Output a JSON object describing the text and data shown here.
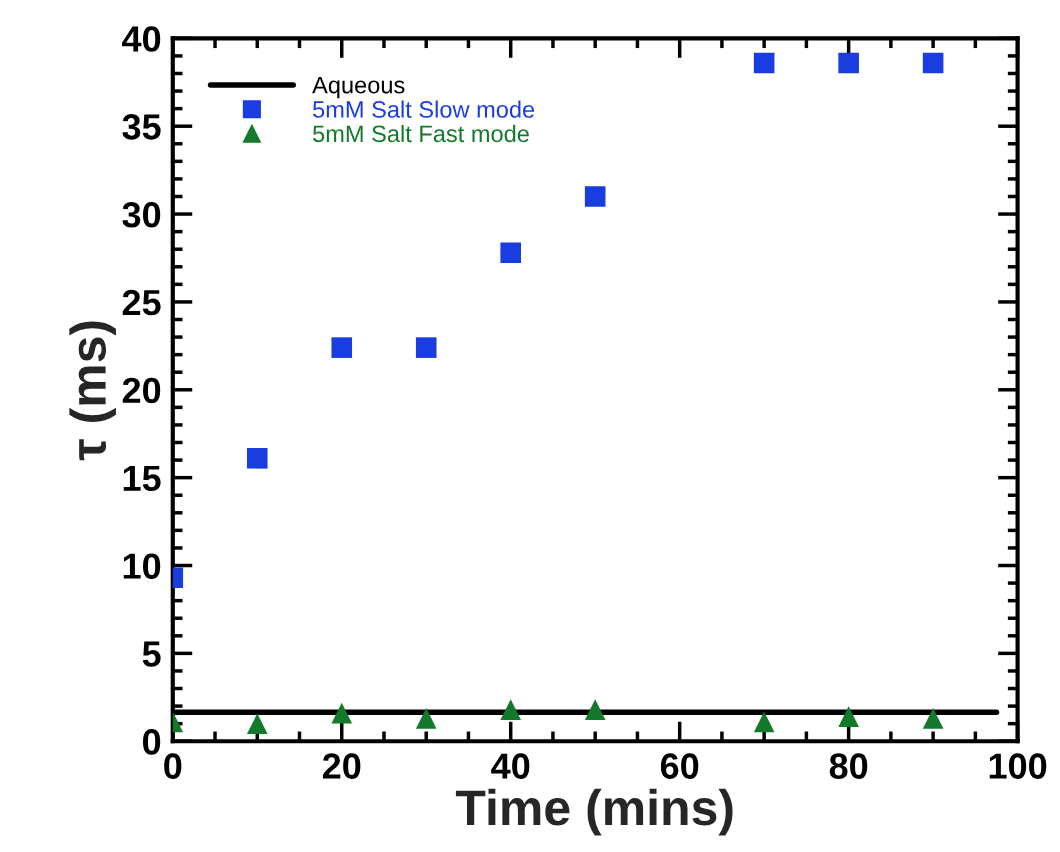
{
  "chart_data": {
    "type": "scatter",
    "xlabel": "Time (mins)",
    "ylabel": "τ (ms)",
    "xlim": [
      0,
      100
    ],
    "xticks": [
      0,
      20,
      40,
      60,
      80,
      100
    ],
    "ylim": [
      0,
      40
    ],
    "yticks": [
      0,
      5,
      10,
      15,
      20,
      25,
      30,
      35,
      40
    ],
    "grid": false,
    "legend": "top left",
    "series": [
      {
        "name": "Aqueous",
        "type": "line",
        "color": "#000000",
        "x": [
          0,
          97.5
        ],
        "values": [
          1.65,
          1.65
        ],
        "marker": "none",
        "line_style": "solid"
      },
      {
        "name": "5mM Salt Slow mode",
        "color": "#1a3de0",
        "marker": "square",
        "x": [
          0,
          10,
          20,
          30,
          40,
          50,
          70,
          80,
          90
        ],
        "values": [
          9.3,
          16.1,
          22.4,
          22.4,
          27.8,
          31.0,
          38.6,
          38.6,
          38.6
        ]
      },
      {
        "name": "5mM Salt Fast mode",
        "color": "#127a2a",
        "marker": "triangle",
        "x": [
          0,
          10,
          20,
          30,
          40,
          50,
          70,
          80,
          90
        ],
        "values": [
          1.1,
          1.0,
          1.6,
          1.3,
          1.8,
          1.8,
          1.1,
          1.4,
          1.3
        ]
      }
    ]
  }
}
